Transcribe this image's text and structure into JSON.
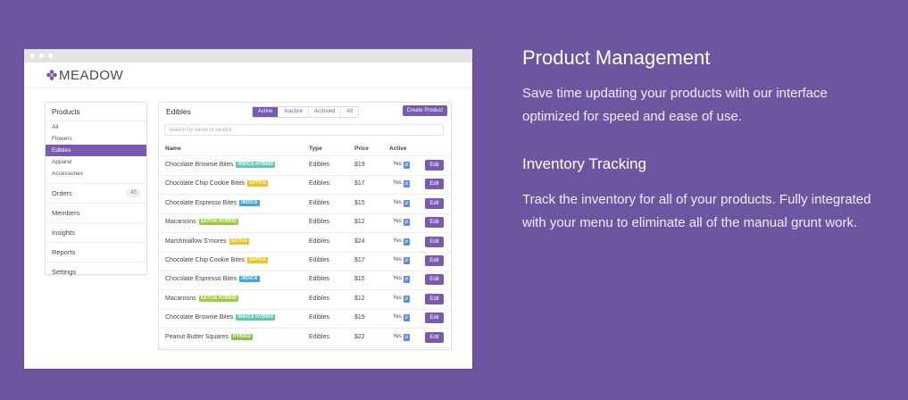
{
  "app": {
    "logo_text": "MEADOW"
  },
  "sidebar": {
    "heading": "Products",
    "subitems": [
      "All",
      "Flowers",
      "Edibles",
      "Apparel",
      "Accessories"
    ],
    "active_subitem": "Edibles",
    "items": [
      {
        "label": "Orders",
        "badge": "45"
      },
      {
        "label": "Members"
      },
      {
        "label": "Insights"
      },
      {
        "label": "Reports"
      },
      {
        "label": "Settings"
      }
    ]
  },
  "panel": {
    "title": "Edibles",
    "filters": [
      "Active",
      "Inactive",
      "Archived",
      "All"
    ],
    "active_filter": "Active",
    "create_label": "Create Product",
    "search_placeholder": "Search by name or vendor",
    "columns": [
      "Name",
      "Type",
      "Price",
      "Active"
    ],
    "edit_label": "Edit",
    "rows": [
      {
        "name": "Chocolate Brownie Bites",
        "tag": "INDICA HYBRID",
        "tag_color": "#5ccab5",
        "type": "Edibles",
        "price": "$19",
        "active": "Yes"
      },
      {
        "name": "Chocolate Chip Cookie Bites",
        "tag": "SATIVA",
        "tag_color": "#f2c21b",
        "type": "Edibles",
        "price": "$17",
        "active": "Yes"
      },
      {
        "name": "Chocolate Espresso Bites",
        "tag": "INDICA",
        "tag_color": "#3fa8e4",
        "type": "Edibles",
        "price": "$15",
        "active": "Yes"
      },
      {
        "name": "Macaroons",
        "tag": "SATIVA HYBRID",
        "tag_color": "#9ccc3a",
        "type": "Edibles",
        "price": "$12",
        "active": "Yes"
      },
      {
        "name": "Marshmallow S'mores",
        "tag": "SATIVA",
        "tag_color": "#f2c21b",
        "type": "Edibles",
        "price": "$24",
        "active": "Yes"
      },
      {
        "name": "Chocolate Chip Cookie Bites",
        "tag": "SATIVA",
        "tag_color": "#f2c21b",
        "type": "Edibles",
        "price": "$17",
        "active": "Yes"
      },
      {
        "name": "Chocolate Espresso Bites",
        "tag": "INDICA",
        "tag_color": "#3fa8e4",
        "type": "Edibles",
        "price": "$15",
        "active": "Yes"
      },
      {
        "name": "Macaroons",
        "tag": "SATIVA HYBRID",
        "tag_color": "#9ccc3a",
        "type": "Edibles",
        "price": "$12",
        "active": "Yes"
      },
      {
        "name": "Chocolate Brownie Bites",
        "tag": "INDICA HYBRID",
        "tag_color": "#5ccab5",
        "type": "Edibles",
        "price": "$19",
        "active": "Yes"
      },
      {
        "name": "Peanut Butter Squares",
        "tag": "HYBRID",
        "tag_color": "#8bc34a",
        "type": "Edibles",
        "price": "$22",
        "active": "Yes"
      }
    ]
  },
  "marketing": {
    "title": "Product Management",
    "body": "Save time updating your products with our interface optimized for speed and ease of use.",
    "subtitle": "Inventory Tracking",
    "body2": "Track the inventory for all of your products. Fully integrated with your menu to eliminate all of the manual grunt work."
  },
  "colors": {
    "background": "#6e55a0",
    "accent": "#7a5ab0",
    "stepper": "#5b8ee6"
  }
}
